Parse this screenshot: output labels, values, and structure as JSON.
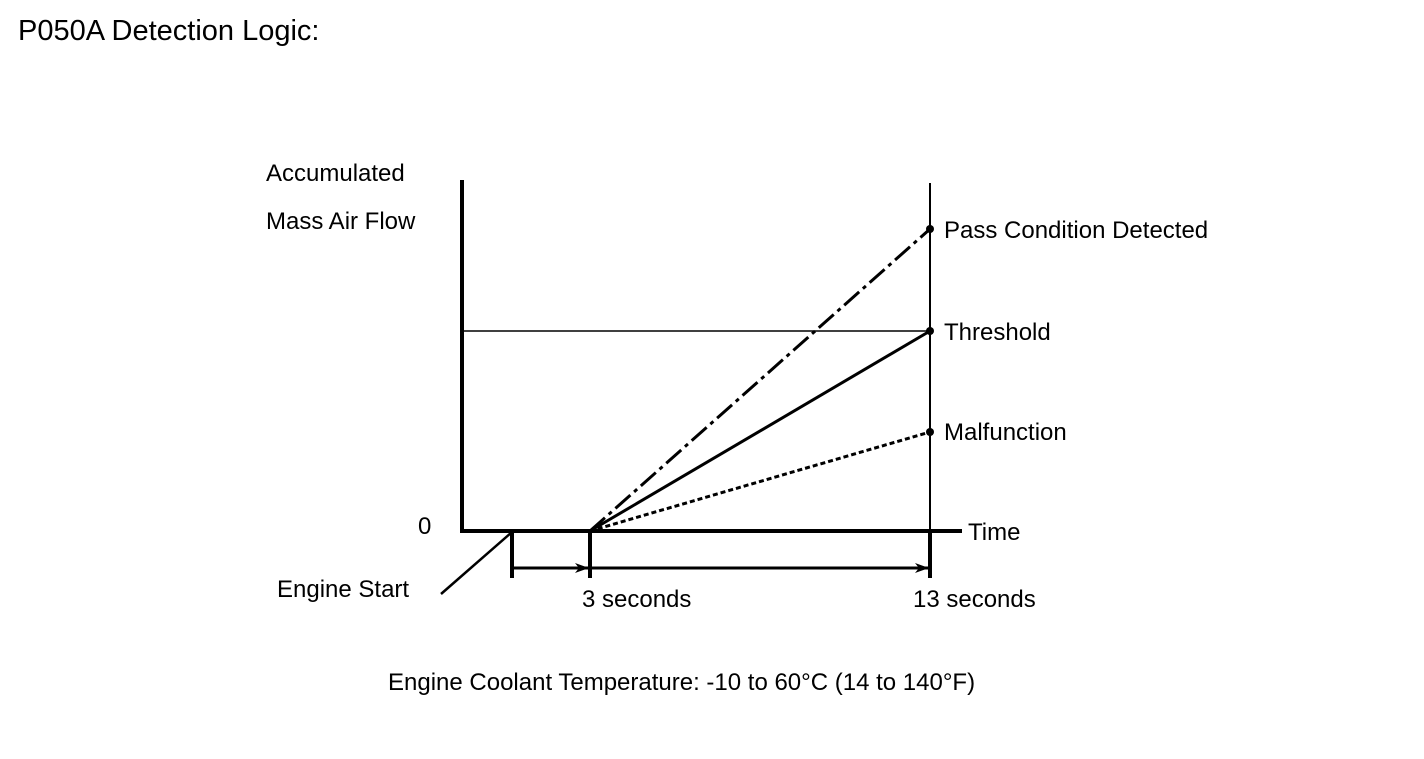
{
  "title": "P050A Detection Logic:",
  "y_axis_label_line1": "Accumulated",
  "y_axis_label_line2": "Mass Air Flow",
  "x_axis_label": "Time",
  "origin_label": "0",
  "engine_start_label": "Engine Start",
  "tick_3s_label": "3 seconds",
  "tick_13s_label": "13 seconds",
  "lines": {
    "pass": {
      "label": "Pass Condition Detected",
      "style": "dash-dot"
    },
    "threshold": {
      "label": "Threshold",
      "style": "solid"
    },
    "malfunction": {
      "label": "Malfunction",
      "style": "dotted"
    }
  },
  "footnote": "Engine Coolant Temperature: -10 to 60°C (14 to 140°F)"
}
